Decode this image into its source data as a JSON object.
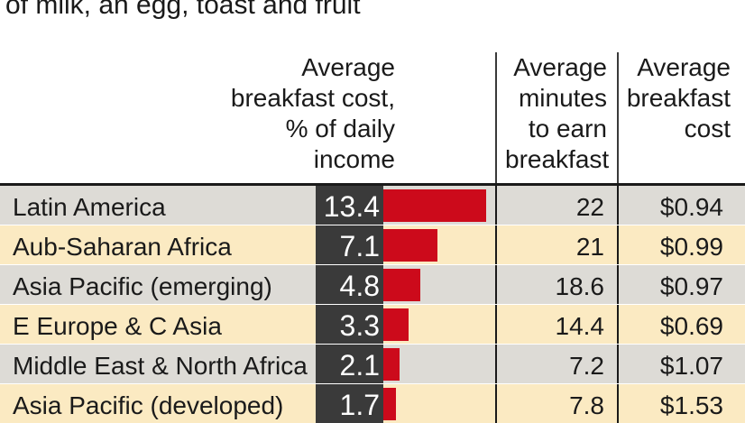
{
  "subtitle": "of milk, an egg, toast and fruit",
  "colors": {
    "row_beige": "#fbeac2",
    "row_gray": "#dddbd6",
    "bar": "#cc0a1b",
    "value_box": "#3a3a3a"
  },
  "chart_data": {
    "type": "table",
    "headers": {
      "cost_pct": "Average\nbreakfast cost,\n% of daily\nincome",
      "minutes": "Average\nminutes\nto earn\nbreakfast",
      "cost": "Average\nbreakfast\ncost"
    },
    "bar_max": 13.4,
    "rows": [
      {
        "region": "Latin America",
        "cost_pct": "13.4",
        "pct_value": 13.4,
        "minutes": "22",
        "cost": "$0.94"
      },
      {
        "region": "Aub-Saharan Africa",
        "cost_pct": "7.1",
        "pct_value": 7.1,
        "minutes": "21",
        "cost": "$0.99"
      },
      {
        "region": "Asia Pacific (emerging)",
        "cost_pct": "4.8",
        "pct_value": 4.8,
        "minutes": "18.6",
        "cost": "$0.97"
      },
      {
        "region": "E Europe & C Asia",
        "cost_pct": "3.3",
        "pct_value": 3.3,
        "minutes": "14.4",
        "cost": "$0.69"
      },
      {
        "region": "Middle East & North Africa",
        "cost_pct": "2.1",
        "pct_value": 2.1,
        "minutes": "7.2",
        "cost": "$1.07"
      },
      {
        "region": "Asia Pacific (developed)",
        "cost_pct": "1.7",
        "pct_value": 1.7,
        "minutes": "7.8",
        "cost": "$1.53"
      }
    ]
  }
}
